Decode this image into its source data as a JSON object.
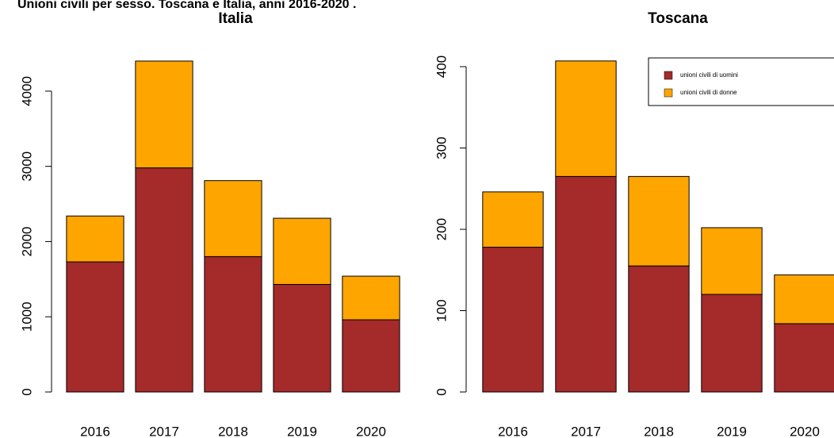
{
  "title": "Unioni civili per sesso. Toscana e Italia, anni 2016-2020 .",
  "chart_data": [
    {
      "type": "stacked_bar",
      "title": "Italia",
      "categories": [
        "2016",
        "2017",
        "2018",
        "2019",
        "2020"
      ],
      "series": [
        {
          "name": "unioni civili di uomini",
          "color": "#a52a2a",
          "values": [
            1730,
            2980,
            1800,
            1430,
            960
          ]
        },
        {
          "name": "unioni civili di donne",
          "color": "#ffa500",
          "values": [
            610,
            1420,
            1010,
            880,
            580
          ]
        }
      ],
      "ylim": [
        0,
        4600
      ],
      "yticks": [
        0,
        1000,
        2000,
        3000,
        4000
      ]
    },
    {
      "type": "stacked_bar",
      "title": "Toscana",
      "categories": [
        "2016",
        "2017",
        "2018",
        "2019",
        "2020"
      ],
      "series": [
        {
          "name": "unioni civili di uomini",
          "color": "#a52a2a",
          "values": [
            178,
            265,
            155,
            120,
            84
          ]
        },
        {
          "name": "unioni civili di donne",
          "color": "#ffa500",
          "values": [
            68,
            142,
            110,
            82,
            60
          ]
        }
      ],
      "ylim": [
        0,
        420
      ],
      "yticks": [
        0,
        100,
        200,
        300,
        400
      ],
      "legend": "topright"
    }
  ]
}
